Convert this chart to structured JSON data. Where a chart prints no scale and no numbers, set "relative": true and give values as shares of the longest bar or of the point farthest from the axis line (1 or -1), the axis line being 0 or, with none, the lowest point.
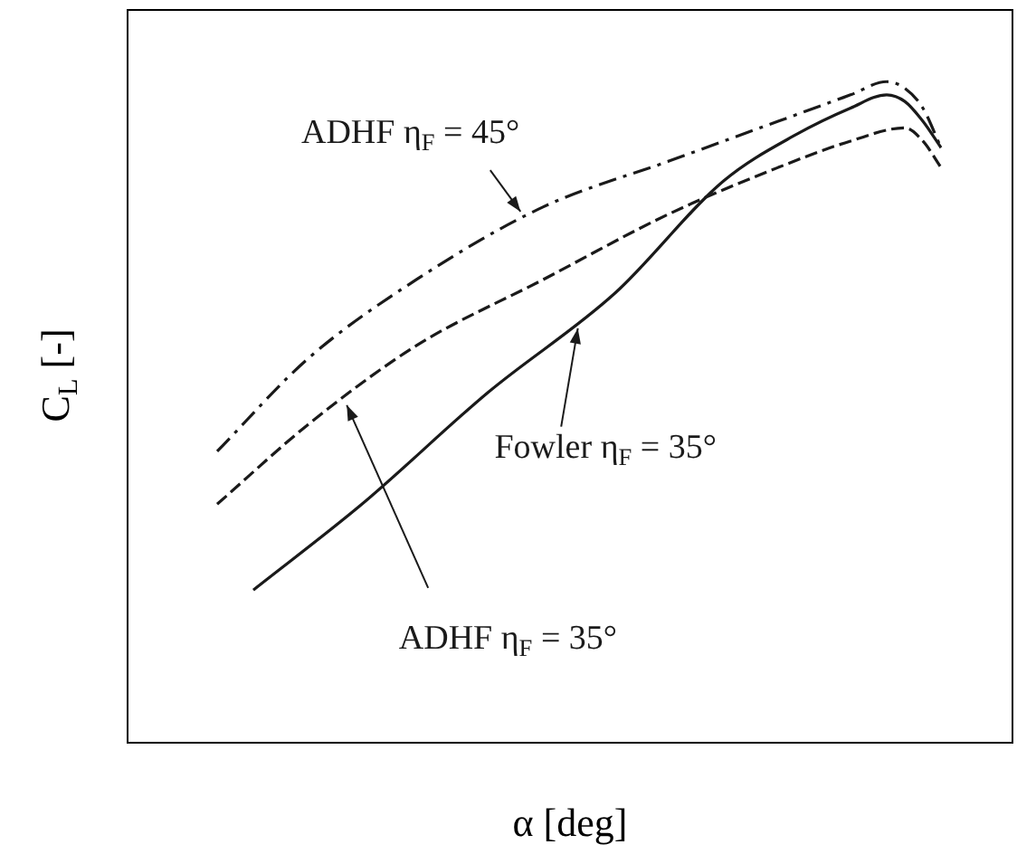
{
  "chart_data": {
    "type": "line",
    "relative": true,
    "xlabel": "α [deg]",
    "ylabel": "C$_{L}$ [-]",
    "categories": [
      null,
      null,
      null,
      null,
      null,
      null,
      null,
      null,
      null,
      null,
      null,
      null,
      null,
      null,
      null,
      null,
      null,
      null,
      null,
      null,
      null,
      null,
      null,
      null,
      null,
      null,
      null,
      null,
      null,
      null,
      null,
      null,
      null,
      null,
      null,
      null,
      null,
      null,
      null,
      null,
      null,
      null,
      null,
      null,
      null,
      null,
      null,
      null,
      null,
      null
    ],
    "series": [
      {
        "name": "ADHF η$_{F}$ = 45°",
        "color": "#1a1a1a",
        "line_style": "dashdot",
        "values": [
          null,
          null,
          null,
          null,
          null,
          0.44,
          null,
          null,
          null,
          null,
          0.58,
          null,
          null,
          null,
          null,
          null,
          0.7,
          null,
          null,
          null,
          null,
          null,
          null,
          0.81,
          null,
          null,
          null,
          null,
          null,
          null,
          0.88,
          null,
          null,
          null,
          null,
          null,
          0.94,
          null,
          null,
          null,
          0.98,
          null,
          1.0,
          0.99,
          0.96,
          0.9,
          null,
          null,
          null,
          null
        ]
      },
      {
        "name": "ADHF η$_{F}$ = 35°",
        "color": "#1a1a1a",
        "line_style": "dashed",
        "values": [
          null,
          null,
          null,
          null,
          null,
          0.36,
          null,
          null,
          null,
          null,
          0.48,
          null,
          null,
          null,
          null,
          null,
          0.6,
          null,
          null,
          null,
          null,
          null,
          null,
          0.7,
          null,
          null,
          null,
          null,
          null,
          null,
          0.8,
          null,
          null,
          null,
          null,
          null,
          0.87,
          null,
          null,
          null,
          0.91,
          null,
          null,
          0.93,
          0.91,
          0.87,
          null,
          null,
          null,
          null
        ]
      },
      {
        "name": "Fowler η$_{F}$ = 35°",
        "color": "#1a1a1a",
        "line_style": "solid",
        "values": [
          null,
          null,
          null,
          null,
          null,
          null,
          null,
          0.23,
          null,
          null,
          null,
          null,
          null,
          0.36,
          null,
          null,
          null,
          null,
          null,
          null,
          0.53,
          null,
          null,
          null,
          null,
          null,
          null,
          0.68,
          null,
          null,
          null,
          null,
          null,
          0.85,
          null,
          null,
          null,
          0.92,
          null,
          null,
          0.96,
          null,
          0.98,
          0.97,
          0.94,
          0.9,
          null,
          null,
          null,
          null
        ]
      }
    ],
    "legend": false
  }
}
